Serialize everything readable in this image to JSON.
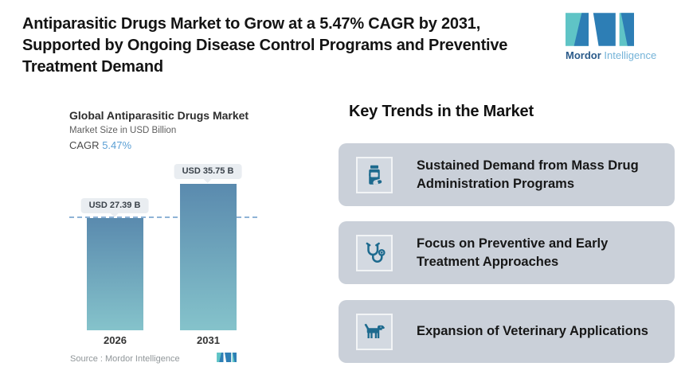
{
  "header": {
    "title": "Antiparasitic Drugs Market to Grow at a 5.47% CAGR by 2031, Supported by Ongoing Disease Control Programs and Preventive Treatment Demand",
    "title_lines": [
      "Antiparasitic Drugs Market to Grow at a 5.47% CAGR by 2031,",
      "Supported by Ongoing Disease Control Programs and Preventive",
      "Treatment Demand"
    ]
  },
  "brand": {
    "name_primary": "Mordor",
    "name_secondary": "Intelligence"
  },
  "chart_data": {
    "type": "bar",
    "title": "Global Antiparasitic Drugs Market",
    "subtitle": "Market Size in USD Billion",
    "cagr_label": "CAGR",
    "cagr_value": "5.47%",
    "categories": [
      "2026",
      "2031"
    ],
    "values": [
      27.39,
      35.75
    ],
    "value_labels": [
      "USD 27.39 B",
      "USD 35.75 B"
    ],
    "ylabel": "Market Size in USD Billion",
    "xlabel": "",
    "ylim": [
      0,
      40
    ],
    "grid": "off",
    "legend": "off",
    "y_axis": "hidden",
    "reference_line": {
      "style": "dashed",
      "at": 27.39
    },
    "source": "Source :  Mordor Intelligence"
  },
  "trends": {
    "heading": "Key Trends in the Market",
    "items": [
      {
        "icon": "pill-bottle-icon",
        "label": "Sustained Demand from Mass Drug Administration Programs",
        "lines": [
          "Sustained Demand from Mass Drug",
          "Administration Programs"
        ]
      },
      {
        "icon": "stethoscope-icon",
        "label": "Focus on Preventive and Early Treatment Approaches",
        "lines": [
          "Focus on Preventive and Early",
          "Treatment Approaches"
        ]
      },
      {
        "icon": "dog-icon",
        "label": "Expansion of Veterinary Applications",
        "lines": [
          "Expansion of Veterinary Applications"
        ]
      }
    ]
  },
  "colors": {
    "accent": "#1d6a8e",
    "card_bg": "#cad0d9",
    "icon_box_bg": "#d3d9e1",
    "icon_box_border": "#f2f4f6",
    "dashed": "#8fb3d6",
    "cagr": "#5b9fd4",
    "bar_top": "#5a8aae",
    "bar_bottom": "#85c3cb",
    "teal": "#5fc4c6",
    "blue": "#2d7eb5",
    "bubble_bg": "#e9edf1"
  }
}
